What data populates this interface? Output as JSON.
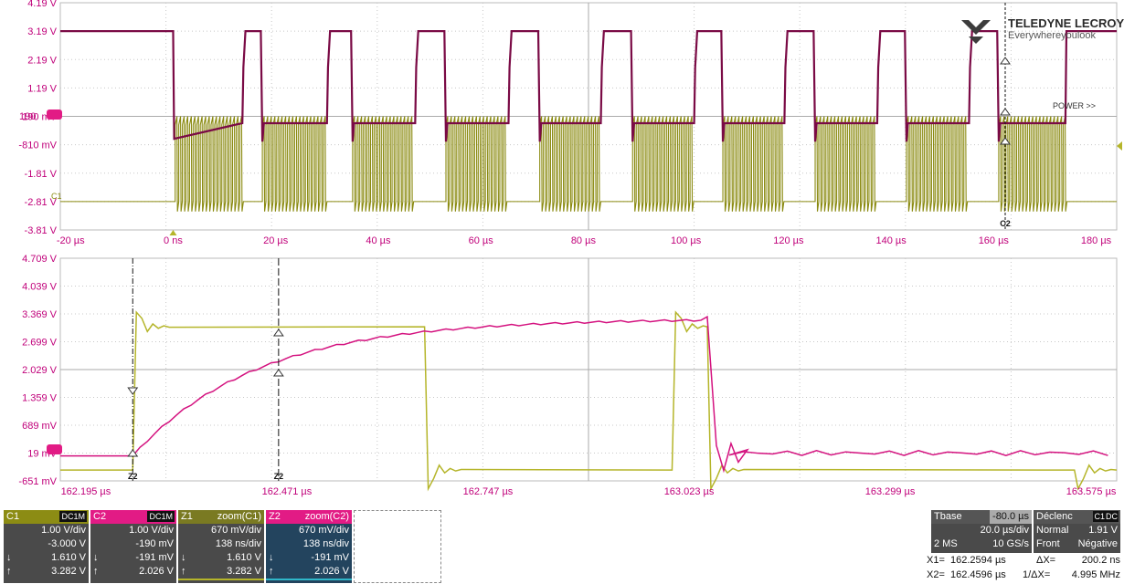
{
  "brand": {
    "name": "TELEDYNE LECROY",
    "tagline": "Everywhereyoulook"
  },
  "colors": {
    "c1": "#b5b52a",
    "c2": "#d4127f",
    "axis_text": "#c0007a",
    "grid": "#c8c8c8",
    "c1_box": "#8c8c14",
    "c2_box": "#e21b85",
    "z1_box": "#7a7a22",
    "z2_box": "#23445e",
    "panel": "#4a4a4a"
  },
  "chart_data": [
    {
      "type": "line",
      "name": "overview",
      "xlabels": [
        "-20 µs",
        "0 ns",
        "20 µs",
        "40 µs",
        "60 µs",
        "80 µs",
        "100 µs",
        "120 µs",
        "140 µs",
        "160 µs",
        "180 µs"
      ],
      "x": [
        -20,
        0,
        20,
        40,
        60,
        80,
        100,
        120,
        140,
        160,
        180
      ],
      "xlim": [
        -22,
        184
      ],
      "ylabels": [
        "4.19 V",
        "3.19 V",
        "2.19 V",
        "1.19 V",
        "190 mV",
        "-810 mV",
        "-1.81 V",
        "-2.81 V",
        "-3.81 V"
      ],
      "ylim": [
        -3.81,
        4.19
      ],
      "annotations": [
        "C2",
        "C2"
      ],
      "marker_labels": {
        "c2_offset": "190",
        "c1_offset": "C1",
        "power": "POWER >>"
      },
      "series": [
        {
          "name": "C1",
          "bursts_us": [
            [
              0.4,
              13.5
            ],
            [
              17.4,
              30
            ],
            [
              35,
              47.2
            ],
            [
              53.2,
              65.4
            ],
            [
              71.5,
              83.4
            ],
            [
              89.6,
              101.6
            ],
            [
              107.2,
              119.2
            ],
            [
              125.2,
              137.3
            ],
            [
              143,
              155.2
            ],
            [
              161,
              174
            ]
          ],
          "low_v": -2.81,
          "high_v": 0.19
        },
        {
          "name": "C2",
          "high_v": 3.19,
          "mid_v": -0.05
        }
      ]
    },
    {
      "type": "line",
      "name": "zoom",
      "xlabels": [
        "162.195 µs",
        "162.471 µs",
        "162.747 µs",
        "163.023 µs",
        "163.299 µs",
        "163.575 µs"
      ],
      "x": [
        162.195,
        162.471,
        162.747,
        163.023,
        163.299,
        163.575
      ],
      "xlim": [
        162.16,
        163.61
      ],
      "ylabels": [
        "4.709 V",
        "4.039 V",
        "3.369 V",
        "2.699 V",
        "2.029 V",
        "1.359 V",
        "689 mV",
        "19 mV",
        "-651 mV"
      ],
      "ylim": [
        -0.651,
        4.709
      ],
      "annotations": [
        "Z2",
        "Z2"
      ],
      "series": [
        {
          "name": "Z1 zoom(C1)",
          "high_v": 3.06,
          "low_v": -0.39,
          "edges_us": [
            [
              162.2594,
              "rise"
            ],
            [
              162.66,
              "fall"
            ],
            [
              162.9997,
              "rise"
            ],
            [
              163.048,
              "fall"
            ],
            [
              163.552,
              "fall"
            ]
          ]
        },
        {
          "name": "Z2 zoom(C2)",
          "rise_start_us": 162.2594,
          "rise_end_us": 163.045,
          "base_v": -0.05,
          "top_v": 3.25,
          "fall_us": 163.048
        }
      ],
      "cursors": {
        "x1_us": 162.2594,
        "x2_us": 162.4596
      }
    }
  ],
  "panel": {
    "c1": {
      "name": "C1",
      "chip": "DC1M",
      "vdiv": "1.00 V/div",
      "offset": "-3.000 V",
      "down": "1.610 V",
      "up": "3.282 V"
    },
    "c2": {
      "name": "C2",
      "chip": "DC1M",
      "vdiv": "1.00 V/div",
      "offset": "-190 mV",
      "down": "-191 mV",
      "up": "2.026 V"
    },
    "z1": {
      "name": "Z1",
      "src": "zoom(C1)",
      "vdiv": "670 mV/div",
      "tdiv": "138 ns/div",
      "down": "1.610 V",
      "up": "3.282 V"
    },
    "z2": {
      "name": "Z2",
      "src": "zoom(C2)",
      "vdiv": "670 mV/div",
      "tdiv": "138 ns/div",
      "down": "-191 mV",
      "up": "2.026 V"
    },
    "arrows": {
      "down": "↓",
      "up": "↑"
    },
    "tbase": {
      "label": "Tbase",
      "delay": "-80.0 µs",
      "tdiv": "20.0 µs/div",
      "ms": "2 MS",
      "rate": "10 GS/s"
    },
    "trigger": {
      "label": "Déclenc",
      "chip1": "C1",
      "chip2": "DC",
      "mode": "Normal",
      "level": "1.91 V",
      "type": "Front",
      "slope": "Négative"
    },
    "measure": {
      "x1_label": "X1=",
      "x1": "162.2594 µs",
      "x2_label": "X2=",
      "x2": "162.4596 µs",
      "dx_label": "ΔX=",
      "dx": "200.2 ns",
      "inv_label": "1/ΔX=",
      "inv": "4.995 MHz"
    }
  }
}
